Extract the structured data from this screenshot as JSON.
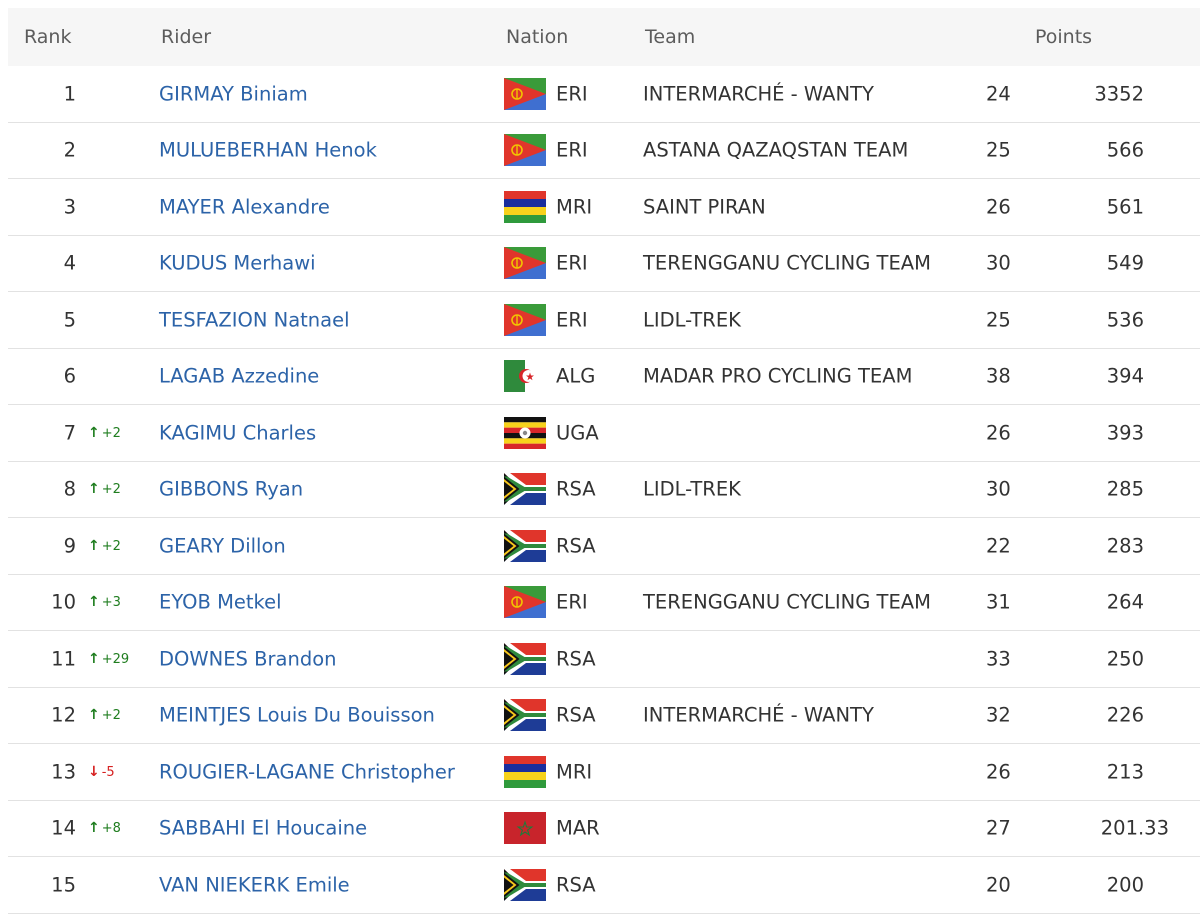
{
  "header": {
    "rank": "Rank",
    "rider": "Rider",
    "nation": "Nation",
    "team": "Team",
    "points": "Points"
  },
  "rows": [
    {
      "rank": "1",
      "move": "",
      "dir": "",
      "rider": "GIRMAY Biniam",
      "flag": "ERI",
      "nation": "ERI",
      "team": "INTERMARCHÉ - WANTY",
      "age": "24",
      "points": "3352"
    },
    {
      "rank": "2",
      "move": "",
      "dir": "",
      "rider": "MULUEBERHAN Henok",
      "flag": "ERI",
      "nation": "ERI",
      "team": "ASTANA QAZAQSTAN TEAM",
      "age": "25",
      "points": "566"
    },
    {
      "rank": "3",
      "move": "",
      "dir": "",
      "rider": "MAYER Alexandre",
      "flag": "MRI",
      "nation": "MRI",
      "team": "SAINT PIRAN",
      "age": "26",
      "points": "561"
    },
    {
      "rank": "4",
      "move": "",
      "dir": "",
      "rider": "KUDUS Merhawi",
      "flag": "ERI",
      "nation": "ERI",
      "team": "TERENGGANU CYCLING TEAM",
      "age": "30",
      "points": "549"
    },
    {
      "rank": "5",
      "move": "",
      "dir": "",
      "rider": "TESFAZION Natnael",
      "flag": "ERI",
      "nation": "ERI",
      "team": "LIDL-TREK",
      "age": "25",
      "points": "536"
    },
    {
      "rank": "6",
      "move": "",
      "dir": "",
      "rider": "LAGAB Azzedine",
      "flag": "ALG",
      "nation": "ALG",
      "team": "MADAR PRO CYCLING TEAM",
      "age": "38",
      "points": "394"
    },
    {
      "rank": "7",
      "move": "+2",
      "dir": "up",
      "rider": "KAGIMU Charles",
      "flag": "UGA",
      "nation": "UGA",
      "team": "",
      "age": "26",
      "points": "393"
    },
    {
      "rank": "8",
      "move": "+2",
      "dir": "up",
      "rider": "GIBBONS Ryan",
      "flag": "RSA",
      "nation": "RSA",
      "team": "LIDL-TREK",
      "age": "30",
      "points": "285"
    },
    {
      "rank": "9",
      "move": "+2",
      "dir": "up",
      "rider": "GEARY Dillon",
      "flag": "RSA",
      "nation": "RSA",
      "team": "",
      "age": "22",
      "points": "283"
    },
    {
      "rank": "10",
      "move": "+3",
      "dir": "up",
      "rider": "EYOB Metkel",
      "flag": "ERI",
      "nation": "ERI",
      "team": "TERENGGANU CYCLING TEAM",
      "age": "31",
      "points": "264"
    },
    {
      "rank": "11",
      "move": "+29",
      "dir": "up",
      "rider": "DOWNES Brandon",
      "flag": "RSA",
      "nation": "RSA",
      "team": "",
      "age": "33",
      "points": "250"
    },
    {
      "rank": "12",
      "move": "+2",
      "dir": "up",
      "rider": "MEINTJES Louis Du Bouisson",
      "flag": "RSA",
      "nation": "RSA",
      "team": "INTERMARCHÉ - WANTY",
      "age": "32",
      "points": "226"
    },
    {
      "rank": "13",
      "move": "-5",
      "dir": "down",
      "rider": "ROUGIER-LAGANE Christopher",
      "flag": "MRI",
      "nation": "MRI",
      "team": "",
      "age": "26",
      "points": "213"
    },
    {
      "rank": "14",
      "move": "+8",
      "dir": "up",
      "rider": "SABBAHI El Houcaine",
      "flag": "MAR",
      "nation": "MAR",
      "team": "",
      "age": "27",
      "points": "201.33"
    },
    {
      "rank": "15",
      "move": "",
      "dir": "",
      "rider": "VAN NIEKERK Emile",
      "flag": "RSA",
      "nation": "RSA",
      "team": "",
      "age": "20",
      "points": "200"
    }
  ],
  "colors": {
    "link": "#2c63a8",
    "up": "#1f7d1f",
    "down": "#d62020",
    "header_bg": "#f6f6f6"
  }
}
